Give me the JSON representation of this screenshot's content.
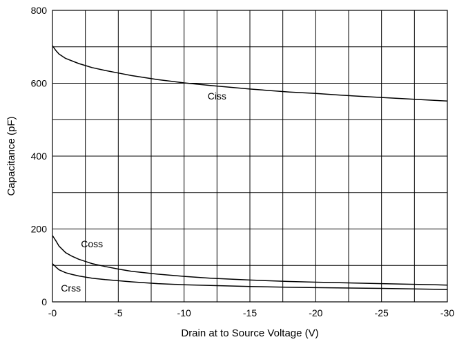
{
  "chart_data": {
    "type": "line",
    "title": "",
    "xlabel": "Drain at to Source Voltage (V)",
    "ylabel": "Capacitance (pF)",
    "xlim": [
      0,
      -30
    ],
    "ylim": [
      0,
      800
    ],
    "x_ticks": [
      "-0",
      "-5",
      "-10",
      "-15",
      "-20",
      "-25",
      "-30"
    ],
    "y_ticks": [
      "0",
      "200",
      "400",
      "600",
      "800"
    ],
    "x_tick_values": [
      0,
      -5,
      -10,
      -15,
      -20,
      -25,
      -30
    ],
    "y_tick_values": [
      0,
      200,
      400,
      600,
      800
    ],
    "x_grid_step": -2.5,
    "y_grid_step": 100,
    "grid": true,
    "legend": "inline labels",
    "series": [
      {
        "name": "Ciss",
        "x": [
          0,
          -0.25,
          -0.5,
          -1,
          -2,
          -3,
          -4,
          -5,
          -6,
          -8,
          -10,
          -12,
          -15,
          -18,
          -20,
          -22,
          -25,
          -28,
          -30
        ],
        "values": [
          703,
          690,
          680,
          668,
          654,
          643,
          635,
          628,
          621,
          610,
          601,
          594,
          584,
          576,
          572,
          567,
          561,
          555,
          551
        ]
      },
      {
        "name": "Coss",
        "x": [
          0,
          -0.25,
          -0.5,
          -1,
          -1.5,
          -2,
          -3,
          -4,
          -5,
          -6,
          -8,
          -10,
          -12,
          -15,
          -18,
          -20,
          -25,
          -30
        ],
        "values": [
          182,
          168,
          153,
          135,
          125,
          117,
          105,
          97,
          90,
          84,
          76,
          70,
          65,
          60,
          56,
          54,
          50,
          46
        ]
      },
      {
        "name": "Crss",
        "x": [
          0,
          -0.25,
          -0.5,
          -1,
          -1.5,
          -2,
          -3,
          -4,
          -5,
          -6,
          -8,
          -10,
          -12,
          -15,
          -18,
          -20,
          -25,
          -30
        ],
        "values": [
          105,
          96,
          88,
          80,
          75,
          71,
          65,
          61,
          58,
          55,
          50,
          47,
          45,
          42,
          40,
          39,
          37,
          34
        ]
      }
    ]
  }
}
